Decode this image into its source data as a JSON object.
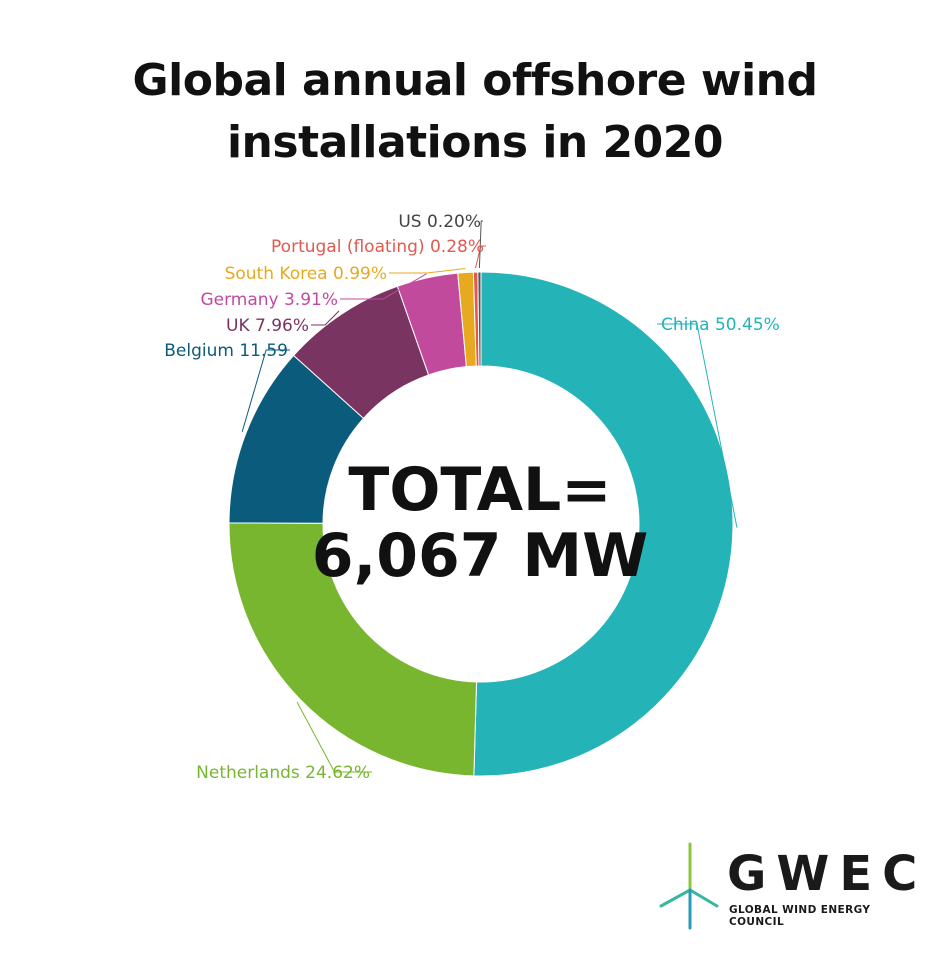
{
  "chart_data": {
    "type": "pie",
    "title_lines": [
      "Global annual offshore wind",
      "installations in 2020"
    ],
    "center_label_lines": [
      "TOTAL=",
      "6,067 MW"
    ],
    "slices": [
      {
        "name": "China",
        "value": 50.45,
        "label": "China 50.45%",
        "color": "#24b3b7",
        "label_color": "#24b3b7"
      },
      {
        "name": "Netherlands",
        "value": 24.62,
        "label": "Netherlands 24.62%",
        "color": "#78b630",
        "label_color": "#78b630"
      },
      {
        "name": "Belgium",
        "value": 11.59,
        "label": "Belgium 11.59",
        "color": "#0b5b7c",
        "label_color": "#0b5b7c"
      },
      {
        "name": "UK",
        "value": 7.96,
        "label": "UK 7.96%",
        "color": "#7a3461",
        "label_color": "#7a3461"
      },
      {
        "name": "Germany",
        "value": 3.91,
        "label": "Germany 3.91%",
        "color": "#c24a9d",
        "label_color": "#c24a9d"
      },
      {
        "name": "South Korea",
        "value": 0.99,
        "label": "South Korea 0.99%",
        "color": "#e7a91f",
        "label_color": "#e7a91f"
      },
      {
        "name": "Portugal (floating)",
        "value": 0.28,
        "label": "Portugal (floating) 0.28%",
        "color": "#e05a4f",
        "label_color": "#e05a4f"
      },
      {
        "name": "US",
        "value": 0.2,
        "label": "US 0.20%",
        "color": "#555555",
        "label_color": "#444444"
      }
    ]
  },
  "logo": {
    "word": "GWEC",
    "subtitle": "GLOBAL WIND ENERGY COUNCIL",
    "accent_color": "#38b6a0",
    "secondary_color": "#8cc63f"
  }
}
